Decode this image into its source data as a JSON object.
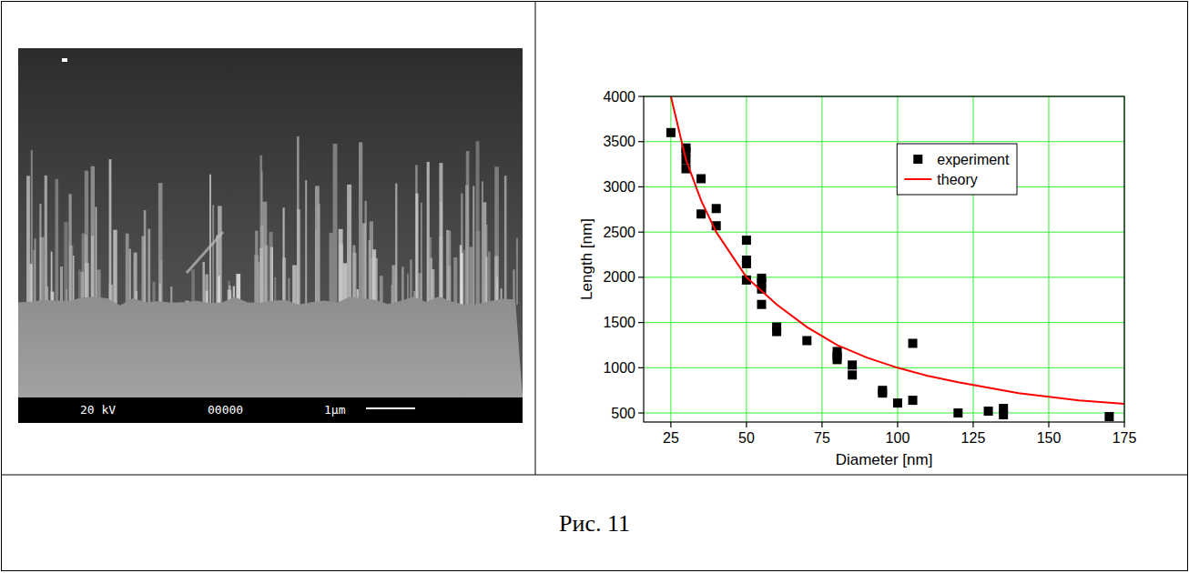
{
  "chart_data": {
    "type": "scatter",
    "xlabel": "Diameter [nm]",
    "ylabel": "Length [nm]",
    "xlim": [
      16,
      175
    ],
    "ylim": [
      400,
      4000
    ],
    "xticks": [
      25,
      50,
      75,
      100,
      125,
      150,
      175
    ],
    "yticks": [
      500,
      1000,
      1500,
      2000,
      2500,
      3000,
      3500,
      4000
    ],
    "grid": true,
    "legend": "upper right",
    "series": [
      {
        "name": "experiment",
        "type": "scatter",
        "color": "#000000",
        "marker": "square",
        "x": [
          25,
          30,
          30,
          30,
          30,
          35,
          35,
          40,
          40,
          50,
          50,
          50,
          50,
          55,
          55,
          55,
          55,
          60,
          60,
          70,
          80,
          80,
          80,
          85,
          85,
          95,
          95,
          100,
          105,
          105,
          120,
          130,
          135,
          135,
          170
        ],
        "values": [
          3600,
          3430,
          3390,
          3300,
          3200,
          3090,
          2700,
          2760,
          2570,
          2410,
          2190,
          2150,
          1970,
          1990,
          1940,
          1870,
          1700,
          1450,
          1400,
          1300,
          1180,
          1130,
          1090,
          1030,
          920,
          750,
          720,
          610,
          1270,
          640,
          500,
          520,
          550,
          480,
          460
        ]
      },
      {
        "name": "theory",
        "type": "line",
        "color": "#ff0000",
        "line_style": "solid",
        "x": [
          25,
          30,
          35,
          40,
          50,
          60,
          70,
          80,
          90,
          100,
          110,
          120,
          130,
          140,
          150,
          160,
          175
        ],
        "values": [
          4000,
          3300,
          2850,
          2500,
          2000,
          1700,
          1450,
          1250,
          1110,
          1000,
          910,
          840,
          780,
          720,
          680,
          640,
          600
        ]
      }
    ]
  },
  "image": {
    "voltage_label": "20 kV",
    "number_label": "00000",
    "scale_label": "1μm"
  },
  "caption": "Рис. 11"
}
